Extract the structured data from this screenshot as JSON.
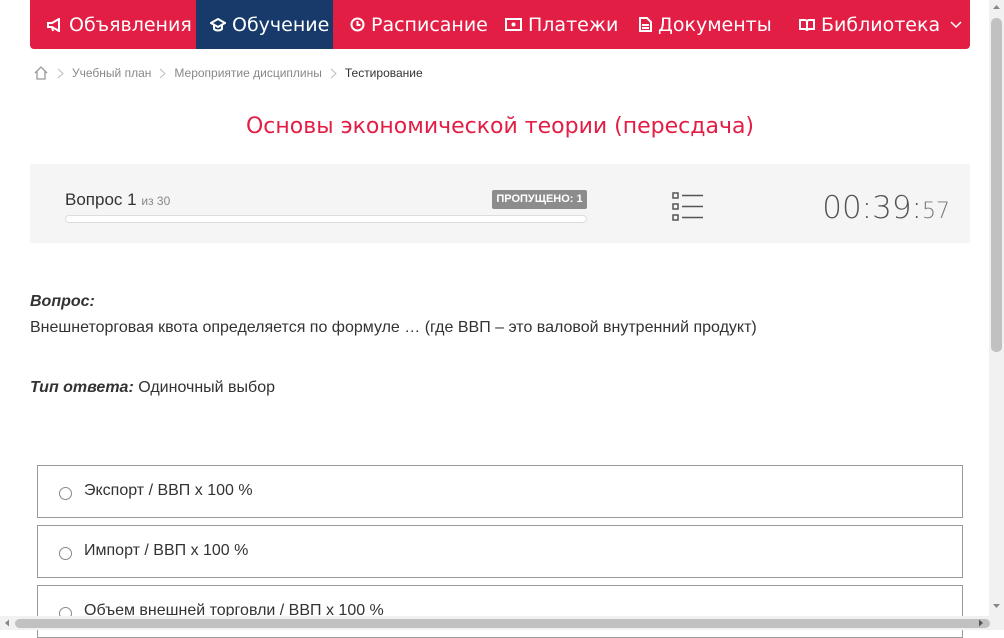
{
  "nav": {
    "items": [
      "Объявления",
      "Обучение",
      "Расписание",
      "Платежи",
      "Документы",
      "Библиотека"
    ]
  },
  "breadcrumbs": [
    "Учебный план",
    "Мероприятие дисциплины",
    "Тестирование"
  ],
  "title": "Основы экономической теории (пересдача)",
  "progress": {
    "label": "Вопрос",
    "number": "1",
    "of": "из 30",
    "skipped": "ПРОПУЩЕНО: 1"
  },
  "timer": {
    "main": "00:39:",
    "seconds": "57"
  },
  "question": {
    "label": "Вопрос:",
    "text": "Внешнеторговая квота определяется по формуле … (где ВВП – это валовой внутренний продукт)",
    "type_label": "Тип ответа:",
    "type_value": "Одиночный выбор"
  },
  "options": [
    "Экспорт / ВВП х 100 %",
    "Импорт / ВВП х 100 %",
    "Объем внешней торговли / ВВП х 100 %"
  ]
}
